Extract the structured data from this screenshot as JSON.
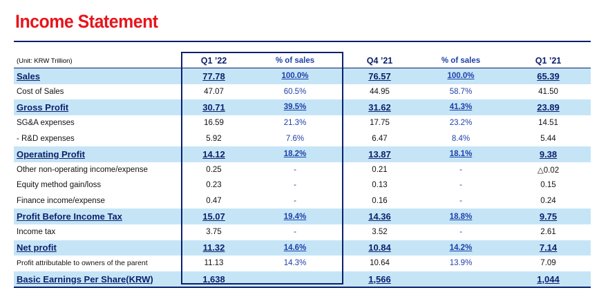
{
  "title": "Income Statement",
  "unit_label": "(Unit: KRW Trillion)",
  "columns": [
    "Q1 ’22",
    "% of sales",
    "Q4 ’21",
    "% of sales",
    "Q1 ’21"
  ],
  "rows": [
    {
      "label": "Sales",
      "values": [
        "77.78",
        "100.0%",
        "76.57",
        "100.0%",
        "65.39"
      ],
      "highlight": true
    },
    {
      "label": "Cost of Sales",
      "values": [
        "47.07",
        "60.5%",
        "44.95",
        "58.7%",
        "41.50"
      ],
      "highlight": false
    },
    {
      "label": "Gross Profit",
      "values": [
        "30.71",
        "39.5%",
        "31.62",
        "41.3%",
        "23.89"
      ],
      "highlight": true
    },
    {
      "label": "SG&A expenses",
      "values": [
        "16.59",
        "21.3%",
        "17.75",
        "23.2%",
        "14.51"
      ],
      "highlight": false
    },
    {
      "label": " - R&D expenses",
      "values": [
        "5.92",
        "7.6%",
        "6.47",
        "8.4%",
        "5.44"
      ],
      "highlight": false
    },
    {
      "label": "Operating Profit",
      "values": [
        "14.12",
        "18.2%",
        "13.87",
        "18.1%",
        "9.38"
      ],
      "highlight": true
    },
    {
      "label": "Other non-operating income/expense",
      "values": [
        "0.25",
        "-",
        "0.21",
        "-",
        "△0.02"
      ],
      "highlight": false
    },
    {
      "label": "Equity method gain/loss",
      "values": [
        "0.23",
        "-",
        "0.13",
        "-",
        "0.15"
      ],
      "highlight": false
    },
    {
      "label": "Finance income/expense",
      "values": [
        "0.47",
        "-",
        "0.16",
        "-",
        "0.24"
      ],
      "highlight": false
    },
    {
      "label": "Profit Before Income Tax",
      "values": [
        "15.07",
        "19.4%",
        "14.36",
        "18.8%",
        "9.75"
      ],
      "highlight": true
    },
    {
      "label": "Income tax",
      "values": [
        "3.75",
        "-",
        "3.52",
        "-",
        "2.61"
      ],
      "highlight": false
    },
    {
      "label": "Net profit",
      "values": [
        "11.32",
        "14.6%",
        "10.84",
        "14.2%",
        "7.14"
      ],
      "highlight": true
    },
    {
      "label": "Profit attributable to owners of the parent",
      "values": [
        "11.13",
        "14.3%",
        "10.64",
        "13.9%",
        "7.09"
      ],
      "highlight": false,
      "small": true
    },
    {
      "label": "Basic Earnings Per Share(KRW)",
      "values": [
        "1,638",
        "",
        "1,566",
        "",
        "1,044"
      ],
      "highlight": true
    }
  ]
}
